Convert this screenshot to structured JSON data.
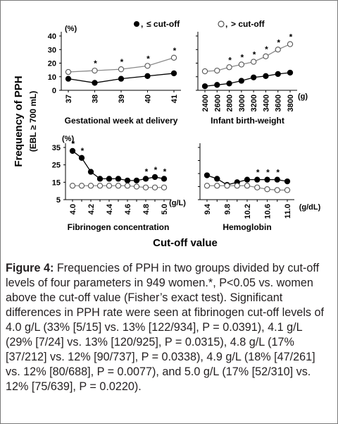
{
  "legend": {
    "below": "≤ cut-off",
    "above": "> cut-off",
    "separator": ","
  },
  "yaxis_title_line1": "Frequency of PPH",
  "yaxis_title_line2": "(EBL ≥ 700 mL)",
  "xaxis_title": "Cut-off value",
  "significance_marker": "*",
  "colors": {
    "marker_filled": "#000000",
    "marker_open_stroke": "#555555",
    "line_below": "#000000",
    "line_above": "#8a8a8a"
  },
  "chart_data": [
    {
      "id": "gestational",
      "type": "line",
      "xlabel": "Gestational week at delivery",
      "unit_top": "(%)",
      "unit_x": "",
      "categories": [
        "37",
        "38",
        "39",
        "40",
        "41"
      ],
      "ylim": [
        0,
        40
      ],
      "yticks": [
        "0",
        "10",
        "20",
        "30",
        "40"
      ],
      "series": [
        {
          "key": "below",
          "values": [
            8.5,
            5.5,
            8.5,
            10.5,
            12.5
          ]
        },
        {
          "key": "above",
          "values": [
            13.5,
            14.5,
            15.5,
            18,
            24
          ]
        }
      ],
      "significant": [
        false,
        true,
        true,
        true,
        true
      ]
    },
    {
      "id": "birthweight",
      "type": "line",
      "xlabel": "Infant birth-weight",
      "unit_top": "",
      "unit_x": "(g)",
      "categories": [
        "2400",
        "2600",
        "2800",
        "3000",
        "3200",
        "3400",
        "3600",
        "3800"
      ],
      "ylim": [
        0,
        40
      ],
      "yticks": [],
      "series": [
        {
          "key": "below",
          "values": [
            3,
            4,
            5,
            7,
            9.5,
            10.5,
            12,
            13
          ]
        },
        {
          "key": "above",
          "values": [
            14,
            14.5,
            17,
            19,
            21,
            25,
            30,
            34
          ]
        }
      ],
      "significant": [
        false,
        false,
        true,
        true,
        true,
        true,
        true,
        true
      ]
    },
    {
      "id": "fibrinogen",
      "type": "line",
      "xlabel": "Fibrinogen concentration",
      "unit_top": "(%)",
      "unit_x": "(g/L)",
      "categories": [
        "4.0",
        "",
        "4.2",
        "",
        "4.4",
        "",
        "4.6",
        "",
        "4.8",
        "",
        "5.0"
      ],
      "ylim": [
        5,
        35
      ],
      "yticks": [
        "5",
        "15",
        "25",
        "35"
      ],
      "series": [
        {
          "key": "below",
          "values": [
            33,
            29,
            21,
            17,
            17,
            17,
            16,
            16,
            17,
            18,
            17
          ]
        },
        {
          "key": "above",
          "values": [
            13,
            13,
            13,
            13,
            13,
            13,
            13,
            12.5,
            12,
            12,
            12
          ]
        }
      ],
      "significant": [
        true,
        true,
        false,
        false,
        false,
        false,
        false,
        false,
        true,
        true,
        true
      ]
    },
    {
      "id": "hemoglobin",
      "type": "line",
      "xlabel": "Hemoglobin",
      "unit_top": "",
      "unit_x": "(g/dL)",
      "categories": [
        "9.4",
        "",
        "9.8",
        "",
        "10.2",
        "",
        "10.6",
        "",
        "11.0"
      ],
      "ylim": [
        5,
        35
      ],
      "yticks": [],
      "series": [
        {
          "key": "below",
          "values": [
            19,
            17,
            13.5,
            15,
            16.5,
            16.5,
            16.5,
            16.5,
            15.5
          ]
        },
        {
          "key": "above",
          "values": [
            13,
            13,
            13,
            13,
            13,
            12,
            11,
            10.5,
            10.5
          ]
        }
      ],
      "significant": [
        false,
        false,
        false,
        false,
        false,
        true,
        true,
        true,
        false
      ]
    }
  ],
  "caption": {
    "label": "Figure 4:",
    "text": " Frequencies of PPH in two groups divided by cut-off levels of four parameters in 949 women.*, P<0.05 vs. women above the cut-off value (Fisher’s exact test). Significant differences in PPH rate were seen at fibrinogen cut-off levels of 4.0 g/L (33% [5/15] vs. 13% [122/934], P = 0.0391), 4.1 g/L (29% [7/24] vs. 13% [120/925], P = 0.0315), 4.8 g/L (17% [37/212] vs. 12% [90/737], P = 0.0338), 4.9 g/L (18% [47/261] vs. 12% [80/688], P = 0.0077), and 5.0 g/L (17% [52/310] vs. 12% [75/639], P = 0.0220)."
  }
}
